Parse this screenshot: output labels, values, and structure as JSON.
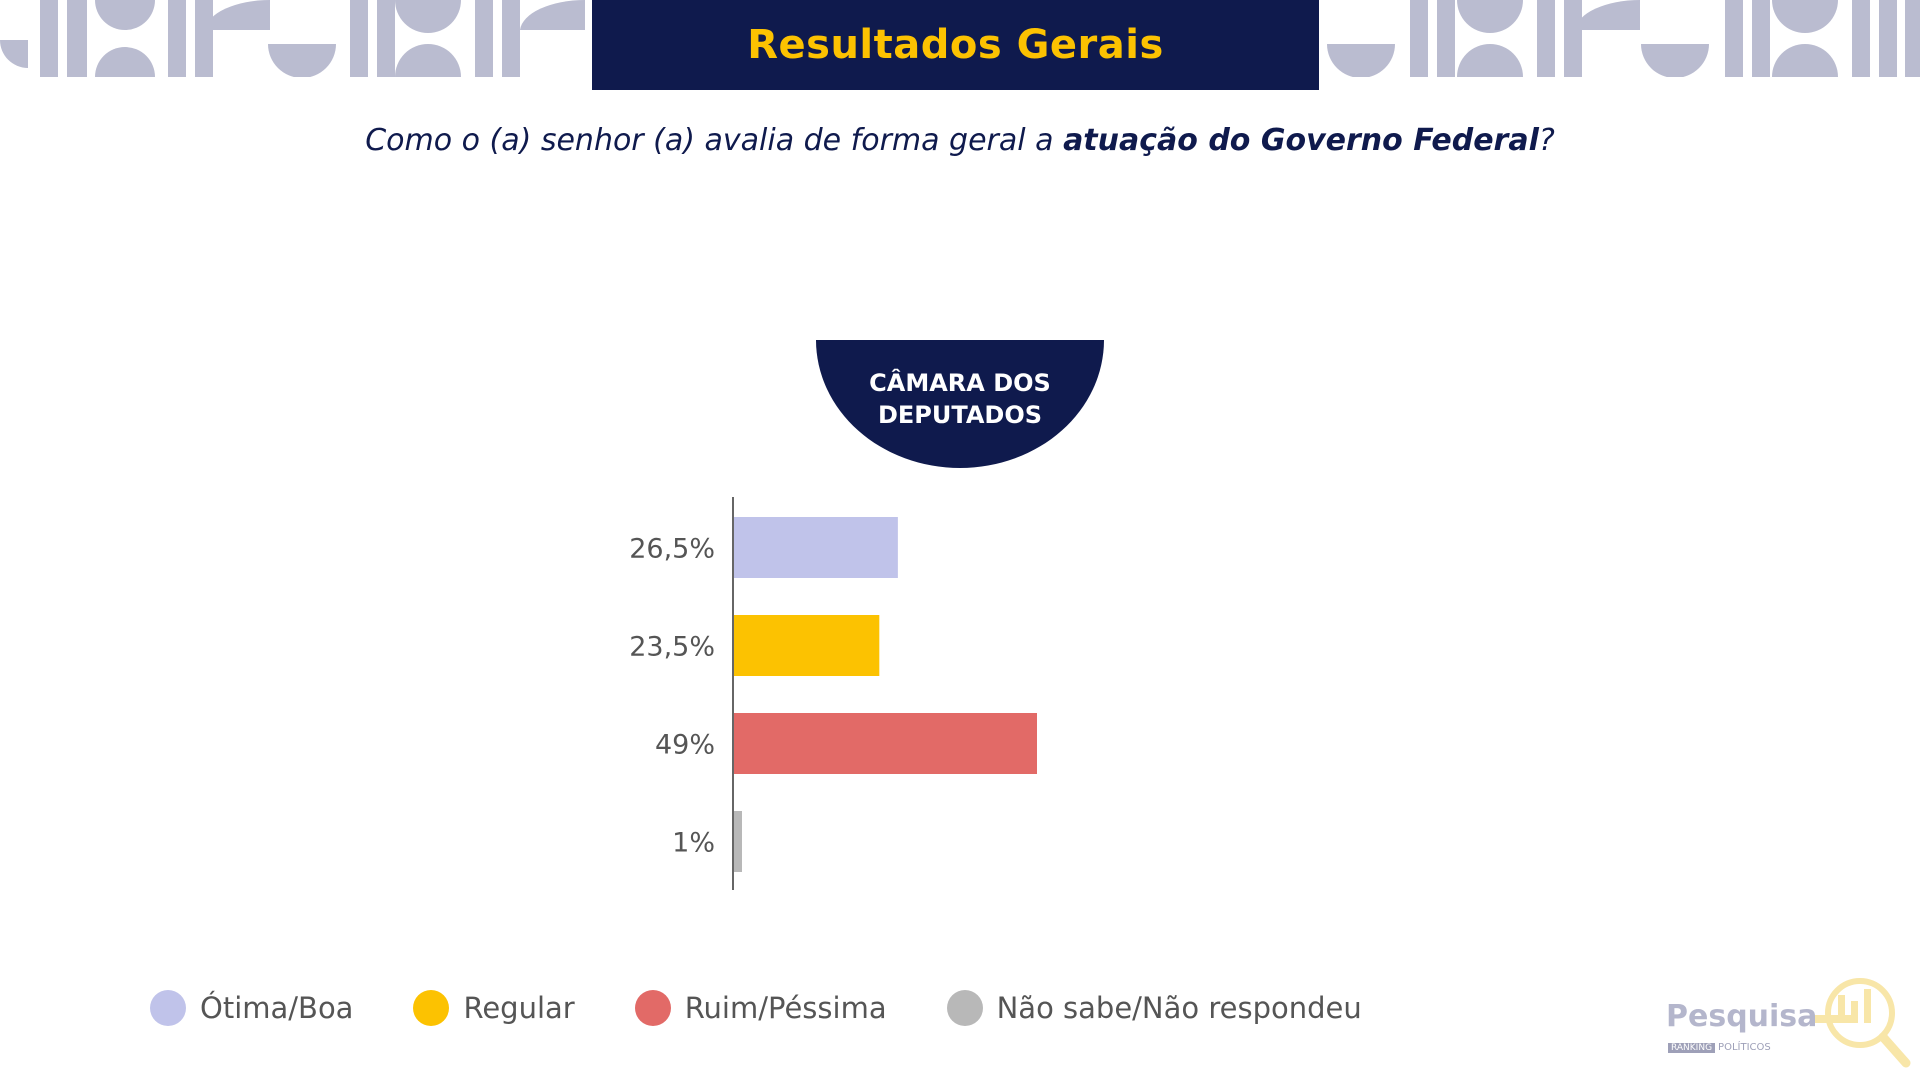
{
  "header": {
    "title": "Resultados Gerais"
  },
  "question": {
    "part1": "Como o (a) senhor (a) avalia de forma geral a ",
    "bold": "atuação do Governo Federal",
    "part2": "?"
  },
  "panel": {
    "line1": "CÂMARA DOS",
    "line2": "DEPUTADOS"
  },
  "chart_data": {
    "type": "bar",
    "orientation": "horizontal",
    "categories": [
      "Ótima/Boa",
      "Regular",
      "Ruim/Péssima",
      "Não sabe/Não respondeu"
    ],
    "values": [
      26.5,
      23.5,
      49,
      1
    ],
    "value_labels": [
      "26,5%",
      "23,5%",
      "49%",
      "1%"
    ],
    "colors": [
      "#c0c3ea",
      "#fcc201",
      "#e26a67",
      "#b8b8b8"
    ],
    "xlim": [
      0,
      100
    ],
    "grid": false,
    "legend_position": "bottom"
  },
  "legend": {
    "items": [
      {
        "label": "Ótima/Boa",
        "color": "#c0c3ea"
      },
      {
        "label": "Regular",
        "color": "#fcc201"
      },
      {
        "label": "Ruim/Péssima",
        "color": "#e26a67"
      },
      {
        "label": "Não sabe/Não respondeu",
        "color": "#b8b8b8"
      }
    ]
  },
  "logo": {
    "word": "Pesquisa",
    "tag": "RANKING",
    "sub": "POLÍTICOS"
  },
  "colors": {
    "navy": "#0f1a4d",
    "gold": "#fcc201",
    "decoration": "#babcd0"
  }
}
